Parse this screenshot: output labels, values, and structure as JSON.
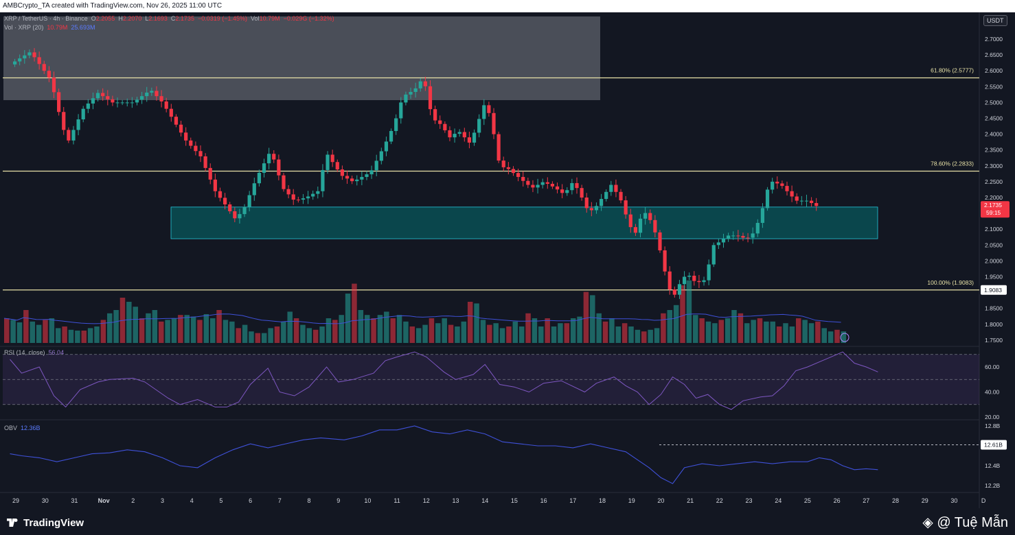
{
  "header": {
    "created_by": "AMBCrypto_TA created with TradingView.com, Nov 26, 2025 11:00 UTC",
    "symbol": "XRP / TetherUS · 4h · Binance",
    "o_label": "O",
    "o_value": "2.2055",
    "h_label": "H",
    "h_value": "2.2070",
    "l_label": "L",
    "l_value": "2.1693",
    "c_label": "C",
    "c_value": "2.1735",
    "change": "−0.0319 (−1.45%)",
    "vol_label": "Vol",
    "vol_value": "10.79M",
    "vol_change": "−0.029G (−1.32%)",
    "vol_line_label": "Vol · XRP (20)",
    "vol_line_v1": "10.79M",
    "vol_line_v2": "25.693M",
    "rsi_label": "RSI (14, close)",
    "rsi_value": "56.04",
    "obv_label": "OBV",
    "obv_value": "12.36B"
  },
  "currency_button": "USDT",
  "footer": {
    "logo": "TradingView",
    "watermark": "@ Tuệ Mẫn"
  },
  "colors": {
    "up": "#26a69a",
    "down": "#f23645",
    "fib": "#e8e2a8",
    "zone": "#00737a",
    "supply": "#b2b5be",
    "rsi": "#7e57c2",
    "obv": "#3f51d9",
    "bg": "#131722"
  },
  "chart_data": {
    "type": "candlestick",
    "x_axis": {
      "labels": [
        "29",
        "30",
        "31",
        "Nov",
        "2",
        "3",
        "4",
        "5",
        "6",
        "7",
        "8",
        "9",
        "10",
        "11",
        "12",
        "13",
        "14",
        "15",
        "16",
        "17",
        "18",
        "19",
        "20",
        "21",
        "22",
        "23",
        "24",
        "25",
        "26",
        "27",
        "28",
        "29",
        "30",
        "D"
      ]
    },
    "price_axis": {
      "ticks": [
        2.7,
        2.65,
        2.6,
        2.55,
        2.5,
        2.45,
        2.4,
        2.35,
        2.3,
        2.25,
        2.2,
        2.15,
        2.1,
        2.05,
        2.0,
        1.95,
        1.9,
        1.85,
        1.8,
        1.75
      ],
      "tick_labels": [
        "2.7000",
        "2.6500",
        "2.6000",
        "2.5500",
        "2.5000",
        "2.4500",
        "2.4000",
        "2.3500",
        "2.3000",
        "2.2500",
        "2.2000",
        "2.1500",
        "2.1000",
        "2.0500",
        "2.0000",
        "1.9500",
        "1.9000",
        "1.8500",
        "1.8000",
        "1.7500"
      ],
      "last_price": "2.1735",
      "countdown": "59:15",
      "fib_100_label": "1.9083"
    },
    "fib_levels": [
      {
        "label": "61.80% (2.5777)",
        "price": 2.5777
      },
      {
        "label": "78.60% (2.2833)",
        "price": 2.2833
      },
      {
        "label": "100.00% (1.9083)",
        "price": 1.9083
      }
    ],
    "zones": [
      {
        "name": "supply",
        "price_top": 2.7,
        "price_bottom": 2.5,
        "from_day": "29",
        "to_day": "18"
      },
      {
        "name": "demand",
        "price_top": 2.17,
        "price_bottom": 2.07,
        "from_day": "3",
        "to_day": "25"
      }
    ],
    "price_path": [
      [
        28.8,
        2.62
      ],
      [
        29.5,
        2.66
      ],
      [
        30.2,
        2.57
      ],
      [
        30.6,
        2.42
      ],
      [
        30.8,
        2.38
      ],
      [
        31.3,
        2.48
      ],
      [
        31.8,
        2.53
      ],
      [
        32.3,
        2.5
      ],
      [
        33,
        2.5
      ],
      [
        33.6,
        2.54
      ],
      [
        34,
        2.5
      ],
      [
        34.4,
        2.44
      ],
      [
        34.8,
        2.38
      ],
      [
        35.3,
        2.33
      ],
      [
        35.8,
        2.22
      ],
      [
        36.2,
        2.17
      ],
      [
        36.5,
        2.13
      ],
      [
        36.8,
        2.17
      ],
      [
        37.2,
        2.26
      ],
      [
        37.7,
        2.35
      ],
      [
        38.1,
        2.23
      ],
      [
        38.5,
        2.19
      ],
      [
        38.9,
        2.2
      ],
      [
        39.3,
        2.22
      ],
      [
        39.6,
        2.34
      ],
      [
        40.1,
        2.27
      ],
      [
        40.5,
        2.25
      ],
      [
        41.1,
        2.28
      ],
      [
        41.6,
        2.37
      ],
      [
        41.9,
        2.43
      ],
      [
        42.2,
        2.52
      ],
      [
        42.6,
        2.54
      ],
      [
        42.9,
        2.58
      ],
      [
        43.2,
        2.45
      ],
      [
        43.5,
        2.43
      ],
      [
        43.8,
        2.39
      ],
      [
        44.1,
        2.41
      ],
      [
        44.5,
        2.37
      ],
      [
        45,
        2.5
      ],
      [
        45.2,
        2.45
      ],
      [
        45.5,
        2.3
      ],
      [
        45.8,
        2.29
      ],
      [
        46.2,
        2.26
      ],
      [
        46.6,
        2.23
      ],
      [
        47,
        2.25
      ],
      [
        47.4,
        2.23
      ],
      [
        47.7,
        2.21
      ],
      [
        48,
        2.25
      ],
      [
        48.2,
        2.22
      ],
      [
        48.5,
        2.16
      ],
      [
        48.7,
        2.16
      ],
      [
        49,
        2.2
      ],
      [
        49.3,
        2.24
      ],
      [
        49.6,
        2.2
      ],
      [
        49.9,
        2.12
      ],
      [
        50.1,
        2.08
      ],
      [
        50.4,
        2.16
      ],
      [
        50.7,
        2.12
      ],
      [
        50.9,
        2.06
      ],
      [
        51.2,
        1.94
      ],
      [
        51.4,
        1.88
      ],
      [
        51.7,
        1.94
      ],
      [
        51.9,
        1.96
      ],
      [
        52.2,
        1.93
      ],
      [
        52.5,
        1.94
      ],
      [
        52.8,
        2.05
      ],
      [
        53,
        2.06
      ],
      [
        53.3,
        2.08
      ],
      [
        53.6,
        2.08
      ],
      [
        53.9,
        2.07
      ],
      [
        54.1,
        2.08
      ],
      [
        54.4,
        2.14
      ],
      [
        54.6,
        2.22
      ],
      [
        54.8,
        2.25
      ],
      [
        55.1,
        2.24
      ],
      [
        55.3,
        2.22
      ],
      [
        55.6,
        2.19
      ],
      [
        56,
        2.19
      ],
      [
        56.3,
        2.1735
      ]
    ],
    "rsi": {
      "label": "RSI (14, close)",
      "value": "56.04",
      "tick_labels": [
        "60.00",
        "40.00",
        "20.00"
      ],
      "band": [
        30,
        70
      ],
      "series": [
        [
          28.8,
          66
        ],
        [
          29.2,
          55
        ],
        [
          29.8,
          60
        ],
        [
          30.3,
          37
        ],
        [
          30.7,
          28
        ],
        [
          31.2,
          42
        ],
        [
          31.8,
          48
        ],
        [
          32.2,
          50
        ],
        [
          33,
          51
        ],
        [
          33.4,
          48
        ],
        [
          34.2,
          35
        ],
        [
          34.6,
          30
        ],
        [
          35.2,
          34
        ],
        [
          35.8,
          28
        ],
        [
          36.2,
          28
        ],
        [
          36.6,
          32
        ],
        [
          37,
          46
        ],
        [
          37.6,
          59
        ],
        [
          38,
          40
        ],
        [
          38.5,
          37
        ],
        [
          39,
          44
        ],
        [
          39.6,
          60
        ],
        [
          40,
          48
        ],
        [
          40.5,
          50
        ],
        [
          41.2,
          55
        ],
        [
          41.6,
          65
        ],
        [
          42,
          68
        ],
        [
          42.6,
          72
        ],
        [
          43,
          68
        ],
        [
          43.6,
          56
        ],
        [
          44,
          50
        ],
        [
          44.6,
          54
        ],
        [
          45,
          62
        ],
        [
          45.5,
          46
        ],
        [
          46,
          44
        ],
        [
          46.5,
          40
        ],
        [
          47,
          47
        ],
        [
          47.6,
          49
        ],
        [
          48.4,
          40
        ],
        [
          48.8,
          47
        ],
        [
          49.4,
          52
        ],
        [
          49.8,
          45
        ],
        [
          50.2,
          40
        ],
        [
          50.6,
          30
        ],
        [
          51,
          38
        ],
        [
          51.4,
          52
        ],
        [
          51.8,
          46
        ],
        [
          52.2,
          35
        ],
        [
          52.6,
          38
        ],
        [
          53,
          30
        ],
        [
          53.4,
          26
        ],
        [
          53.8,
          33
        ],
        [
          54.4,
          36
        ],
        [
          54.8,
          37
        ],
        [
          55.2,
          45
        ],
        [
          55.6,
          57
        ],
        [
          56,
          60
        ],
        [
          56.4,
          64
        ],
        [
          56.8,
          68
        ],
        [
          57.2,
          72
        ],
        [
          57.6,
          63
        ],
        [
          58,
          60
        ],
        [
          58.4,
          56
        ]
      ]
    },
    "obv": {
      "label": "OBV",
      "value": "12.36B",
      "tick_labels": [
        "12.8B",
        "12.4B",
        "12.2B"
      ],
      "marker_label": "12.61B",
      "series": [
        [
          28.8,
          12.52
        ],
        [
          29.2,
          12.5
        ],
        [
          29.8,
          12.48
        ],
        [
          30.4,
          12.44
        ],
        [
          31,
          12.48
        ],
        [
          31.6,
          12.52
        ],
        [
          32.2,
          12.53
        ],
        [
          32.8,
          12.56
        ],
        [
          33.4,
          12.54
        ],
        [
          34,
          12.48
        ],
        [
          34.6,
          12.4
        ],
        [
          35.2,
          12.38
        ],
        [
          35.8,
          12.48
        ],
        [
          36.4,
          12.56
        ],
        [
          37,
          12.62
        ],
        [
          37.6,
          12.58
        ],
        [
          38.2,
          12.62
        ],
        [
          38.8,
          12.66
        ],
        [
          39.4,
          12.68
        ],
        [
          40.2,
          12.66
        ],
        [
          40.8,
          12.7
        ],
        [
          41.4,
          12.76
        ],
        [
          42,
          12.76
        ],
        [
          42.6,
          12.8
        ],
        [
          43.2,
          12.74
        ],
        [
          43.8,
          12.72
        ],
        [
          44.4,
          12.76
        ],
        [
          45,
          12.72
        ],
        [
          45.6,
          12.64
        ],
        [
          46.2,
          12.62
        ],
        [
          46.8,
          12.6
        ],
        [
          47.4,
          12.6
        ],
        [
          48,
          12.58
        ],
        [
          48.6,
          12.62
        ],
        [
          49.2,
          12.58
        ],
        [
          49.8,
          12.54
        ],
        [
          50.2,
          12.46
        ],
        [
          50.6,
          12.38
        ],
        [
          51,
          12.28
        ],
        [
          51.4,
          12.22
        ],
        [
          51.8,
          12.38
        ],
        [
          52.4,
          12.42
        ],
        [
          53,
          12.4
        ],
        [
          53.6,
          12.42
        ],
        [
          54.2,
          12.44
        ],
        [
          54.8,
          12.42
        ],
        [
          55.4,
          12.44
        ],
        [
          56,
          12.44
        ],
        [
          56.4,
          12.48
        ],
        [
          56.8,
          12.46
        ],
        [
          57.2,
          12.4
        ],
        [
          57.6,
          12.36
        ],
        [
          58,
          12.37
        ],
        [
          58.4,
          12.36
        ]
      ]
    },
    "volume": {
      "label": "Vol · XRP (20)",
      "values": [
        30,
        28,
        25,
        40,
        26,
        22,
        28,
        30,
        18,
        20,
        16,
        15,
        15,
        18,
        20,
        28,
        36,
        40,
        55,
        50,
        44,
        30,
        36,
        40,
        26,
        28,
        30,
        34,
        34,
        32,
        28,
        35,
        30,
        40,
        28,
        26,
        18,
        22,
        14,
        12,
        12,
        18,
        20,
        26,
        38,
        30,
        22,
        18,
        16,
        20,
        30,
        28,
        34,
        60,
        72,
        40,
        34,
        30,
        34,
        38,
        30,
        34,
        26,
        20,
        18,
        22,
        30,
        24,
        30,
        22,
        20,
        26,
        50,
        48,
        28,
        22,
        24,
        18,
        20,
        26,
        20,
        36,
        30,
        20,
        30,
        20,
        24,
        24,
        30,
        32,
        62,
        58,
        36,
        26,
        30,
        20,
        24,
        20,
        16,
        14,
        16,
        18,
        36,
        40,
        46,
        70,
        76,
        34,
        30,
        26,
        24,
        28,
        30,
        40,
        36,
        24,
        28,
        30,
        26,
        26,
        20,
        24,
        20,
        30,
        28,
        24,
        26,
        18,
        14,
        16,
        14
      ]
    }
  }
}
